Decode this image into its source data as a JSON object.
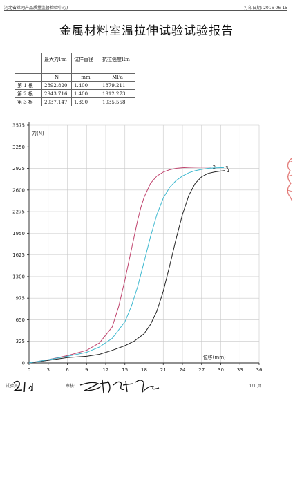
{
  "header": {
    "left": "河北省丝网产品质量监督检验中心)",
    "right": "打印日期: 2016-06-15"
  },
  "title": "金属材料室温拉伸试验试验报告",
  "results_table": {
    "headers": [
      "",
      "最大力Fm",
      "试样直径",
      "抗拉强度Rm"
    ],
    "units": [
      "",
      "N",
      "mm",
      "MPa"
    ],
    "rows": [
      [
        "第 1 根",
        "2892.820",
        "1.400",
        "1879.211"
      ],
      [
        "第 2 根",
        "2943.716",
        "1.400",
        "1912.273"
      ],
      [
        "第 3 根",
        "2937.147",
        "1.390",
        "1935.558"
      ]
    ]
  },
  "chart_data": {
    "type": "line",
    "ylabel": "力(N)",
    "xlabel": "位移(mm)",
    "xlim": [
      0,
      36
    ],
    "ylim": [
      0,
      3575
    ],
    "x_ticks": [
      "0",
      "3",
      "6",
      "9",
      "12",
      "15",
      "18",
      "21",
      "24",
      "27",
      "30",
      "33",
      "36"
    ],
    "y_ticks": [
      "0",
      "325",
      "650",
      "975",
      "1300",
      "1625",
      "1950",
      "2275",
      "2600",
      "2925",
      "3250",
      "3575"
    ],
    "grid": true,
    "series": [
      {
        "name": "1",
        "color": "#222222",
        "x": [
          0,
          3,
          6,
          9,
          11,
          13,
          15,
          16.5,
          18,
          19,
          20,
          21,
          22,
          23,
          24,
          25,
          26,
          27,
          28,
          29,
          30,
          30.7
        ],
        "y": [
          0,
          40,
          80,
          100,
          130,
          190,
          260,
          330,
          440,
          580,
          780,
          1080,
          1460,
          1860,
          2230,
          2520,
          2700,
          2800,
          2850,
          2870,
          2885,
          2893
        ]
      },
      {
        "name": "2",
        "color": "#c0446e",
        "x": [
          0,
          3,
          6,
          9,
          11,
          13,
          14,
          15,
          16,
          17,
          17.5,
          18,
          19,
          20,
          21,
          22,
          23,
          24,
          25,
          26,
          27,
          28.5
        ],
        "y": [
          0,
          50,
          110,
          190,
          300,
          540,
          840,
          1250,
          1700,
          2150,
          2340,
          2490,
          2700,
          2810,
          2870,
          2905,
          2925,
          2935,
          2940,
          2942,
          2943,
          2944
        ]
      },
      {
        "name": "3",
        "color": "#3db8cf",
        "x": [
          0,
          3,
          6,
          9,
          11,
          13,
          15,
          16,
          17,
          18,
          19,
          20,
          21,
          22,
          23,
          24,
          25,
          26,
          27,
          28,
          29,
          30.5
        ],
        "y": [
          0,
          50,
          100,
          160,
          240,
          370,
          620,
          850,
          1150,
          1520,
          1900,
          2230,
          2480,
          2640,
          2740,
          2810,
          2860,
          2890,
          2910,
          2925,
          2932,
          2937
        ]
      }
    ]
  },
  "footer": {
    "tester_label": "试验员:",
    "reviewer_label": "审核:",
    "page": "1/1 页"
  }
}
